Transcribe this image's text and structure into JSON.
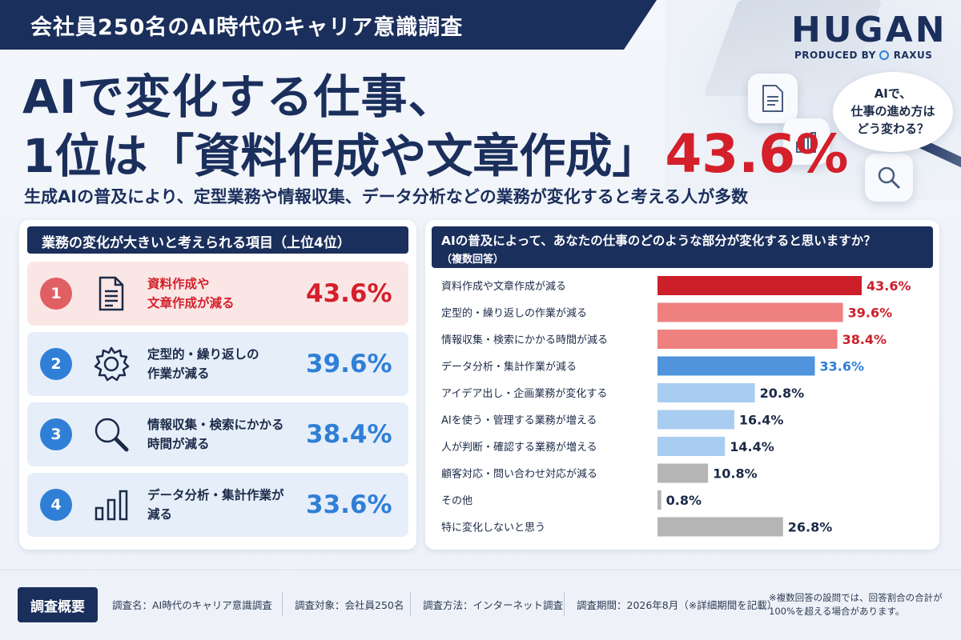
{
  "banner": "会社員250名のAI時代のキャリア意識調査",
  "logo": {
    "name": "HUGAN",
    "produced_by": "PRODUCED BY",
    "partner": "RAXUS"
  },
  "bubble": {
    "line1": "AIで、",
    "line2": "仕事の進め方は",
    "line3": "どう変わる？"
  },
  "headline": {
    "line1": "AIで変化する仕事、",
    "line2": "1位は「資料作成や文章作成」",
    "pct": "43.6%"
  },
  "subhead": "生成AIの普及により、定型業務や情報収集、データ分析などの業務が変化すると考える人が多数",
  "left_panel": {
    "title": "業務の変化が大きいと考えられる項目（上位4位）",
    "items": [
      {
        "rank": "1",
        "line1": "資料作成や",
        "line2": "文章作成が減る",
        "pct": "43.6%",
        "icon": "document-icon"
      },
      {
        "rank": "2",
        "line1": "定型的・繰り返しの",
        "line2": "作業が減る",
        "pct": "39.6%",
        "icon": "gear-icon"
      },
      {
        "rank": "3",
        "line1": "情報収集・検索にかかる",
        "line2": "時間が減る",
        "pct": "38.4%",
        "icon": "magnifier-icon"
      },
      {
        "rank": "4",
        "line1": "データ分析・集計作業が",
        "line2": "減る",
        "pct": "33.6%",
        "icon": "bar-chart-icon"
      }
    ]
  },
  "right_panel": {
    "title": "AIの普及によって、あなたの仕事のどのような部分が変化すると思いますか？",
    "note": "（複数回答）"
  },
  "chart_data": {
    "type": "bar",
    "orientation": "horizontal",
    "categories": [
      "資料作成や文章作成が減る",
      "定型的・繰り返しの作業が減る",
      "情報収集・検索にかかる時間が減る",
      "データ分析・集計作業が減る",
      "アイデア出し・企画業務が変化する",
      "AIを使う・管理する業務が増える",
      "人が判断・確認する業務が増える",
      "顧客対応・問い合わせ対応が減る",
      "その他",
      "特に変化しないと思う"
    ],
    "values": [
      43.6,
      39.6,
      38.4,
      33.6,
      20.8,
      16.4,
      14.4,
      10.8,
      0.8,
      26.8
    ],
    "labels": [
      "43.6%",
      "39.6%",
      "38.4%",
      "33.6%",
      "20.8%",
      "16.4%",
      "14.4%",
      "10.8%",
      "0.8%",
      "26.8%"
    ],
    "colors": [
      "#cc1f2a",
      "#ee8080",
      "#ee8080",
      "#4f94dc",
      "#a9cdf1",
      "#a9cdf1",
      "#a9cdf1",
      "#b5b5b5",
      "#b5b5b5",
      "#b5b5b5"
    ],
    "label_colors": [
      "#cc1f2a",
      "#cc1f2a",
      "#cc1f2a",
      "#2f7fd6",
      "#1b2a47",
      "#1b2a47",
      "#1b2a47",
      "#1b2a47",
      "#1b2a47",
      "#1b2a47"
    ],
    "xlim": [
      0,
      43.6
    ],
    "grid": false
  },
  "footer": {
    "badge": "調査概要",
    "items": [
      "調査名：AI時代のキャリア意識調査",
      "調査対象：会社員250名",
      "調査方法：インターネット調査",
      "調査期間：2026年8月（※詳細期間を記載）"
    ],
    "note1": "※複数回答の設問では、回答割合の合計が",
    "note2": "100%を超える場合があります。"
  },
  "colors": {
    "navy": "#1b2f5c",
    "red": "#d3202a",
    "blue": "#2f7fd6"
  }
}
